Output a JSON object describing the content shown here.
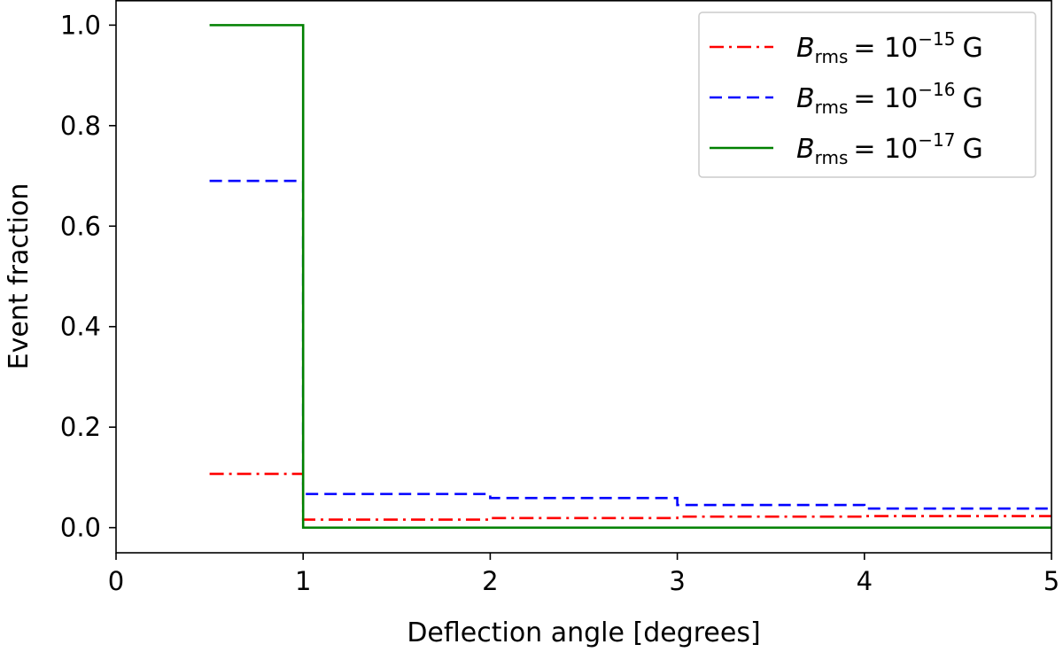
{
  "chart_data": {
    "type": "line",
    "step": "post",
    "title": "",
    "xlabel": "Deflection angle [degrees]",
    "ylabel": "Event fraction",
    "xlim": [
      0,
      5
    ],
    "ylim": [
      -0.05,
      1.05
    ],
    "xticks": [
      0,
      1,
      2,
      3,
      4,
      5
    ],
    "yticks": [
      0.0,
      0.2,
      0.4,
      0.6,
      0.8,
      1.0
    ],
    "xtick_labels": [
      "0",
      "1",
      "2",
      "3",
      "4",
      "5"
    ],
    "ytick_labels": [
      "0.0",
      "0.2",
      "0.4",
      "0.6",
      "0.8",
      "1.0"
    ],
    "grid": false,
    "legend_position": "top-right",
    "series": [
      {
        "name": "B_rms = 10^-15 G",
        "label_symbol": "B",
        "label_subscript": "rms",
        "label_base": "= 10",
        "label_exponent": "−15",
        "label_unit": "G",
        "color": "#ff0000",
        "linestyle": "dashdot",
        "edges": [
          0.5,
          1,
          2,
          3,
          4,
          5
        ],
        "values": [
          0.107,
          0.016,
          0.019,
          0.022,
          0.023
        ]
      },
      {
        "name": "B_rms = 10^-16 G",
        "label_symbol": "B",
        "label_subscript": "rms",
        "label_base": "= 10",
        "label_exponent": "−16",
        "label_unit": "G",
        "color": "#0000ff",
        "linestyle": "dashed",
        "edges": [
          0.5,
          1,
          2,
          3,
          4,
          5
        ],
        "values": [
          0.69,
          0.067,
          0.059,
          0.045,
          0.038
        ]
      },
      {
        "name": "B_rms = 10^-17 G",
        "label_symbol": "B",
        "label_subscript": "rms",
        "label_base": "= 10",
        "label_exponent": "−17",
        "label_unit": "G",
        "color": "#008000",
        "linestyle": "solid",
        "edges": [
          0.5,
          1,
          2,
          3,
          4,
          5
        ],
        "values": [
          1.0,
          0.0,
          0.0,
          0.0,
          0.0
        ]
      }
    ]
  }
}
